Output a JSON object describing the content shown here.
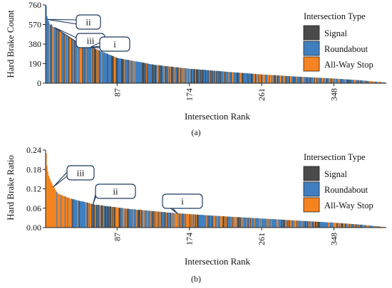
{
  "colors": {
    "signal": "#4a4a4a",
    "roundabout": "#3f7fbf",
    "allway": "#f5841f",
    "axis": "#222222",
    "callout_border": "#1f3a5f"
  },
  "chart_data": [
    {
      "type": "bar",
      "panel_label": "(a)",
      "ylabel": "Hard Brake Count",
      "xlabel": "Intersection Rank",
      "ylim": [
        0,
        760
      ],
      "yticks": [
        "0",
        "190",
        "380",
        "570",
        "760"
      ],
      "xlim": [
        1,
        410
      ],
      "xticks": [
        "87",
        "174",
        "261",
        "348"
      ],
      "legend": {
        "title": "Intersection Type",
        "placement": "top-right",
        "items": [
          "Signal",
          "Roundabout",
          "All-Way Stop"
        ]
      },
      "annotations": [
        {
          "text": "ii",
          "rank": 3,
          "value": 620
        },
        {
          "text": "iii",
          "rank": 12,
          "value": 540
        },
        {
          "text": "i",
          "rank": 55,
          "value": 350
        }
      ],
      "series_model": {
        "count": 410,
        "anchors": [
          [
            1,
            760
          ],
          [
            2,
            650
          ],
          [
            3,
            620
          ],
          [
            5,
            580
          ],
          [
            10,
            545
          ],
          [
            20,
            500
          ],
          [
            35,
            440
          ],
          [
            55,
            350
          ],
          [
            87,
            245
          ],
          [
            130,
            180
          ],
          [
            174,
            140
          ],
          [
            220,
            110
          ],
          [
            261,
            85
          ],
          [
            300,
            65
          ],
          [
            348,
            45
          ],
          [
            380,
            28
          ],
          [
            410,
            5
          ]
        ],
        "type_mix": {
          "signal": 0.22,
          "roundabout": 0.53,
          "allway": 0.25
        }
      }
    },
    {
      "type": "bar",
      "panel_label": "(b)",
      "ylabel": "Hard Brake Ratio",
      "xlabel": "Intersection Rank",
      "ylim": [
        0,
        0.24
      ],
      "yticks": [
        "0.00",
        "0.06",
        "0.12",
        "0.18",
        "0.24"
      ],
      "xlim": [
        1,
        410
      ],
      "xticks": [
        "87",
        "174",
        "261",
        "348"
      ],
      "legend": {
        "title": "Intersection Type",
        "placement": "top-right",
        "items": [
          "Signal",
          "Roundabout",
          "All-Way Stop"
        ]
      },
      "annotations": [
        {
          "text": "iii",
          "rank": 10,
          "value": 0.125
        },
        {
          "text": "ii",
          "rank": 58,
          "value": 0.072
        },
        {
          "text": "i",
          "rank": 160,
          "value": 0.043
        }
      ],
      "series_model": {
        "count": 410,
        "anchors": [
          [
            1,
            0.23
          ],
          [
            2,
            0.19
          ],
          [
            4,
            0.16
          ],
          [
            8,
            0.135
          ],
          [
            15,
            0.105
          ],
          [
            30,
            0.09
          ],
          [
            60,
            0.071
          ],
          [
            100,
            0.058
          ],
          [
            150,
            0.046
          ],
          [
            200,
            0.037
          ],
          [
            261,
            0.028
          ],
          [
            300,
            0.022
          ],
          [
            348,
            0.015
          ],
          [
            380,
            0.009
          ],
          [
            410,
            0.001
          ]
        ],
        "type_mix": {
          "signal": 0.2,
          "roundabout": 0.5,
          "allway": 0.3
        }
      }
    }
  ]
}
